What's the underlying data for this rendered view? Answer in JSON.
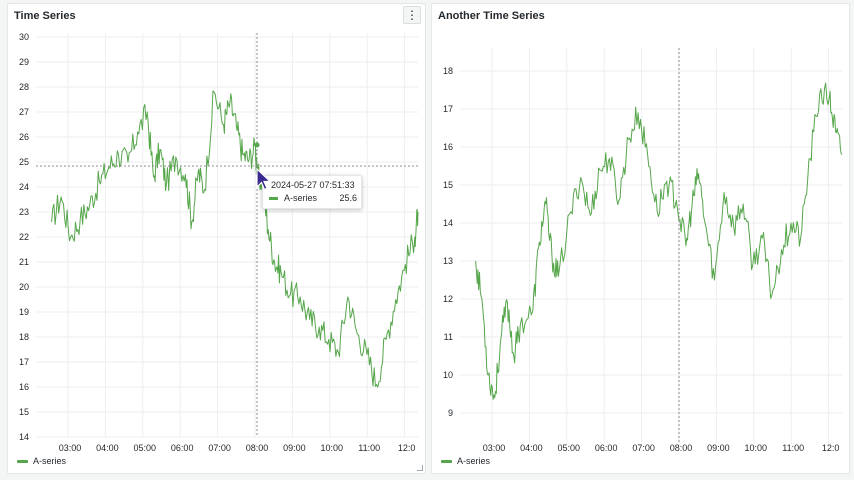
{
  "panels": [
    {
      "title": "Time Series",
      "menu_icon": "⋮",
      "legend": "A-series",
      "y_ticks": [
        "30",
        "29",
        "28",
        "27",
        "26",
        "25",
        "24",
        "23",
        "22",
        "21",
        "20",
        "19",
        "18",
        "17",
        "16",
        "15",
        "14"
      ],
      "x_ticks": [
        "03:00",
        "04:00",
        "05:00",
        "06:00",
        "07:00",
        "08:00",
        "09:00",
        "10:00",
        "11:00",
        "12:0"
      ]
    },
    {
      "title": "Another Time Series",
      "legend": "A-series",
      "y_ticks": [
        "18",
        "17",
        "16",
        "15",
        "14",
        "13",
        "12",
        "11",
        "10",
        "9"
      ],
      "x_ticks": [
        "03:00",
        "04:00",
        "05:00",
        "06:00",
        "07:00",
        "08:00",
        "09:00",
        "10:00",
        "11:00",
        "12:0"
      ]
    }
  ],
  "tooltip": {
    "time": "2024-05-27 07:51:33",
    "series": "A-series",
    "value": "25.6"
  },
  "colors": {
    "series": "#56a64b",
    "grid": "#eceef0",
    "crosshair": "#8e8e8e"
  },
  "chart_data": [
    {
      "type": "line",
      "title": "Time Series",
      "series": [
        {
          "name": "A-series",
          "x": [
            "02:30",
            "02:45",
            "03:00",
            "03:15",
            "03:30",
            "03:45",
            "04:00",
            "04:15",
            "04:30",
            "04:45",
            "05:00",
            "05:10",
            "05:20",
            "05:30",
            "05:45",
            "06:00",
            "06:10",
            "06:20",
            "06:30",
            "06:45",
            "07:00",
            "07:10",
            "07:20",
            "07:30",
            "07:40",
            "07:50",
            "07:52",
            "08:00",
            "08:10",
            "08:20",
            "08:30",
            "08:45",
            "09:00",
            "09:15",
            "09:30",
            "09:45",
            "10:00",
            "10:15",
            "10:30",
            "10:45",
            "11:00",
            "11:15",
            "11:30",
            "11:45",
            "12:00",
            "12:05"
          ],
          "values": [
            22.6,
            23.6,
            22.0,
            22.7,
            23.3,
            24.2,
            24.8,
            25.3,
            25.0,
            26.2,
            27.0,
            24.4,
            25.5,
            24.1,
            25.2,
            24.5,
            22.6,
            24.6,
            23.9,
            27.8,
            26.5,
            27.4,
            26.4,
            25.3,
            25.1,
            25.6,
            24.5,
            24.2,
            22.3,
            21.0,
            20.6,
            19.7,
            19.6,
            18.7,
            18.4,
            17.9,
            17.4,
            19.6,
            18.1,
            17.3,
            16.1,
            17.9,
            19.5,
            20.9,
            22.0,
            23.0
          ]
        }
      ],
      "ylim": [
        14,
        30
      ],
      "grid": true,
      "legend": "bottom-left"
    },
    {
      "type": "line",
      "title": "Another Time Series",
      "series": [
        {
          "name": "A-series",
          "x": [
            "02:30",
            "02:40",
            "02:50",
            "03:00",
            "03:10",
            "03:20",
            "03:30",
            "03:40",
            "04:00",
            "04:10",
            "04:20",
            "04:30",
            "04:40",
            "05:00",
            "05:15",
            "05:30",
            "05:45",
            "06:00",
            "06:15",
            "06:30",
            "06:45",
            "07:00",
            "07:15",
            "07:30",
            "07:45",
            "08:00",
            "08:10",
            "08:20",
            "08:30",
            "08:45",
            "09:00",
            "09:15",
            "09:30",
            "09:45",
            "10:00",
            "10:15",
            "10:30",
            "10:45",
            "11:00",
            "11:15",
            "11:30",
            "11:45",
            "11:55",
            "12:05"
          ],
          "values": [
            13.0,
            12.0,
            10.0,
            9.4,
            11.0,
            11.9,
            10.5,
            11.3,
            11.7,
            13.5,
            14.5,
            13.1,
            12.6,
            14.3,
            15.2,
            14.2,
            15.4,
            15.7,
            14.6,
            16.2,
            16.9,
            15.8,
            14.3,
            15.1,
            14.6,
            13.4,
            14.5,
            15.3,
            14.0,
            12.5,
            14.8,
            13.9,
            14.5,
            12.9,
            13.6,
            12.1,
            13.3,
            14.0,
            13.6,
            15.7,
            17.4,
            17.3,
            16.4,
            15.8
          ]
        }
      ],
      "ylim": [
        9,
        18
      ],
      "grid": true,
      "legend": "bottom-left"
    }
  ]
}
